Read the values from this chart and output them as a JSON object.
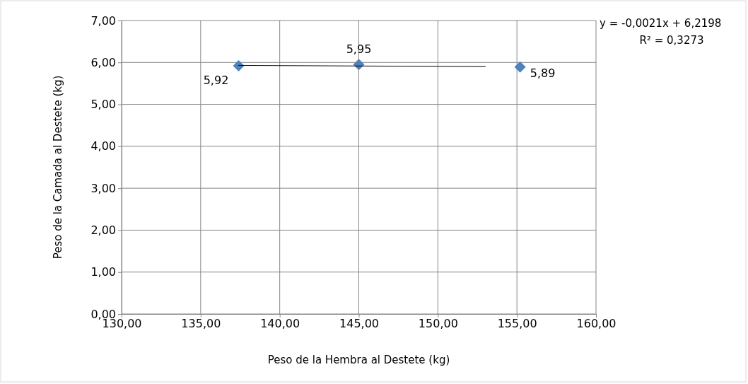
{
  "chart_data": {
    "type": "scatter",
    "xlabel": "Peso de la Hembra al Destete (kg)",
    "ylabel": "Peso de la Camada al Destete (kg)",
    "xlim": [
      130,
      160
    ],
    "xticks": [
      {
        "value": 130,
        "label": "130,00"
      },
      {
        "value": 135,
        "label": "135,00"
      },
      {
        "value": 140,
        "label": "140,00"
      },
      {
        "value": 145,
        "label": "145,00"
      },
      {
        "value": 150,
        "label": "150,00"
      },
      {
        "value": 155,
        "label": "155,00"
      },
      {
        "value": 160,
        "label": "160,00"
      }
    ],
    "ylim": [
      0,
      7
    ],
    "yticks": [
      {
        "value": 0,
        "label": "0,00"
      },
      {
        "value": 1,
        "label": "1,00"
      },
      {
        "value": 2,
        "label": "2,00"
      },
      {
        "value": 3,
        "label": "3,00"
      },
      {
        "value": 4,
        "label": "4,00"
      },
      {
        "value": 5,
        "label": "5,00"
      },
      {
        "value": 6,
        "label": "6,00"
      },
      {
        "value": 7,
        "label": "7,00"
      }
    ],
    "grid": true,
    "marker": "diamond",
    "series": [
      {
        "color": "#4f81bd",
        "x": [
          137.4,
          145.0,
          155.2
        ],
        "values": [
          5.92,
          5.95,
          5.89
        ],
        "value_labels": [
          "5,92",
          "5,95",
          "5,89"
        ]
      },
      {
        "type": "line",
        "marker": "none",
        "color": "#000000",
        "x": [
          137.4,
          153.0
        ],
        "values": [
          5.93,
          5.9
        ]
      }
    ],
    "annotations": [
      "y = -0,0021x + 6,2198",
      "R² = 0,3273"
    ]
  }
}
